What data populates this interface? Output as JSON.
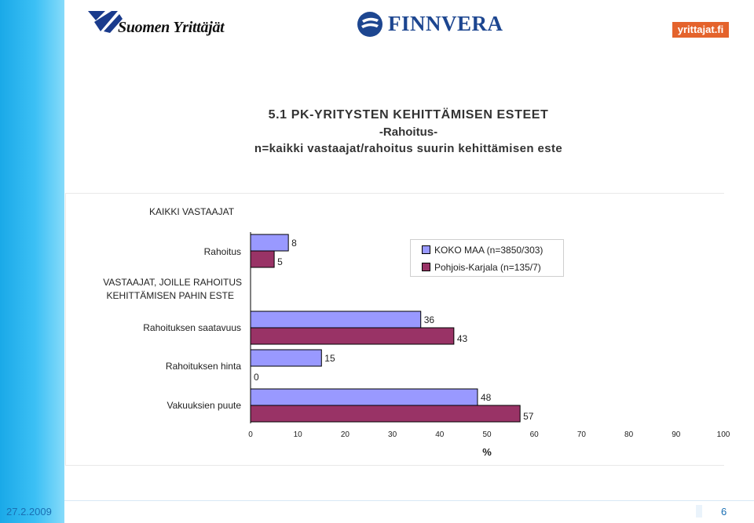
{
  "logos": {
    "suomen_yrittajat": "Suomen Yrittäjät",
    "finnvera": "FINNVERA",
    "yrittajat_fi": "yrittajat.fi"
  },
  "title": {
    "line1": "5.1 PK-YRITYSTEN KEHITTÄMISEN ESTEET",
    "line2": "-Rahoitus-",
    "line3": "n=kaikki vastaajat/rahoitus suurin kehittämisen este"
  },
  "footer": {
    "date": "27.2.2009",
    "page": "6"
  },
  "colors": {
    "series1": "#9999ff",
    "series2": "#993366",
    "side_bar": "#2fb6f0"
  },
  "chart_data": {
    "type": "bar",
    "orientation": "horizontal",
    "section_labels": [
      "KAIKKI VASTAAJAT",
      "VASTAAJAT, JOILLE RAHOITUS KEHITTÄMISEN PAHIN ESTE"
    ],
    "categories": [
      "Rahoitus",
      "Rahoituksen saatavuus",
      "Rahoituksen hinta",
      "Vakuuksien puute"
    ],
    "series": [
      {
        "name": "KOKO MAA (n=3850/303)",
        "values": [
          8,
          36,
          15,
          48
        ],
        "color": "#9999ff"
      },
      {
        "name": "Pohjois-Karjala (n=135/7)",
        "values": [
          5,
          43,
          0,
          57
        ],
        "color": "#993366"
      }
    ],
    "xlabel": "%",
    "xlim": [
      0,
      100
    ],
    "xticks": [
      0,
      10,
      20,
      30,
      40,
      50,
      60,
      70,
      80,
      90,
      100
    ],
    "legend_position": "top-right",
    "grid": false
  }
}
